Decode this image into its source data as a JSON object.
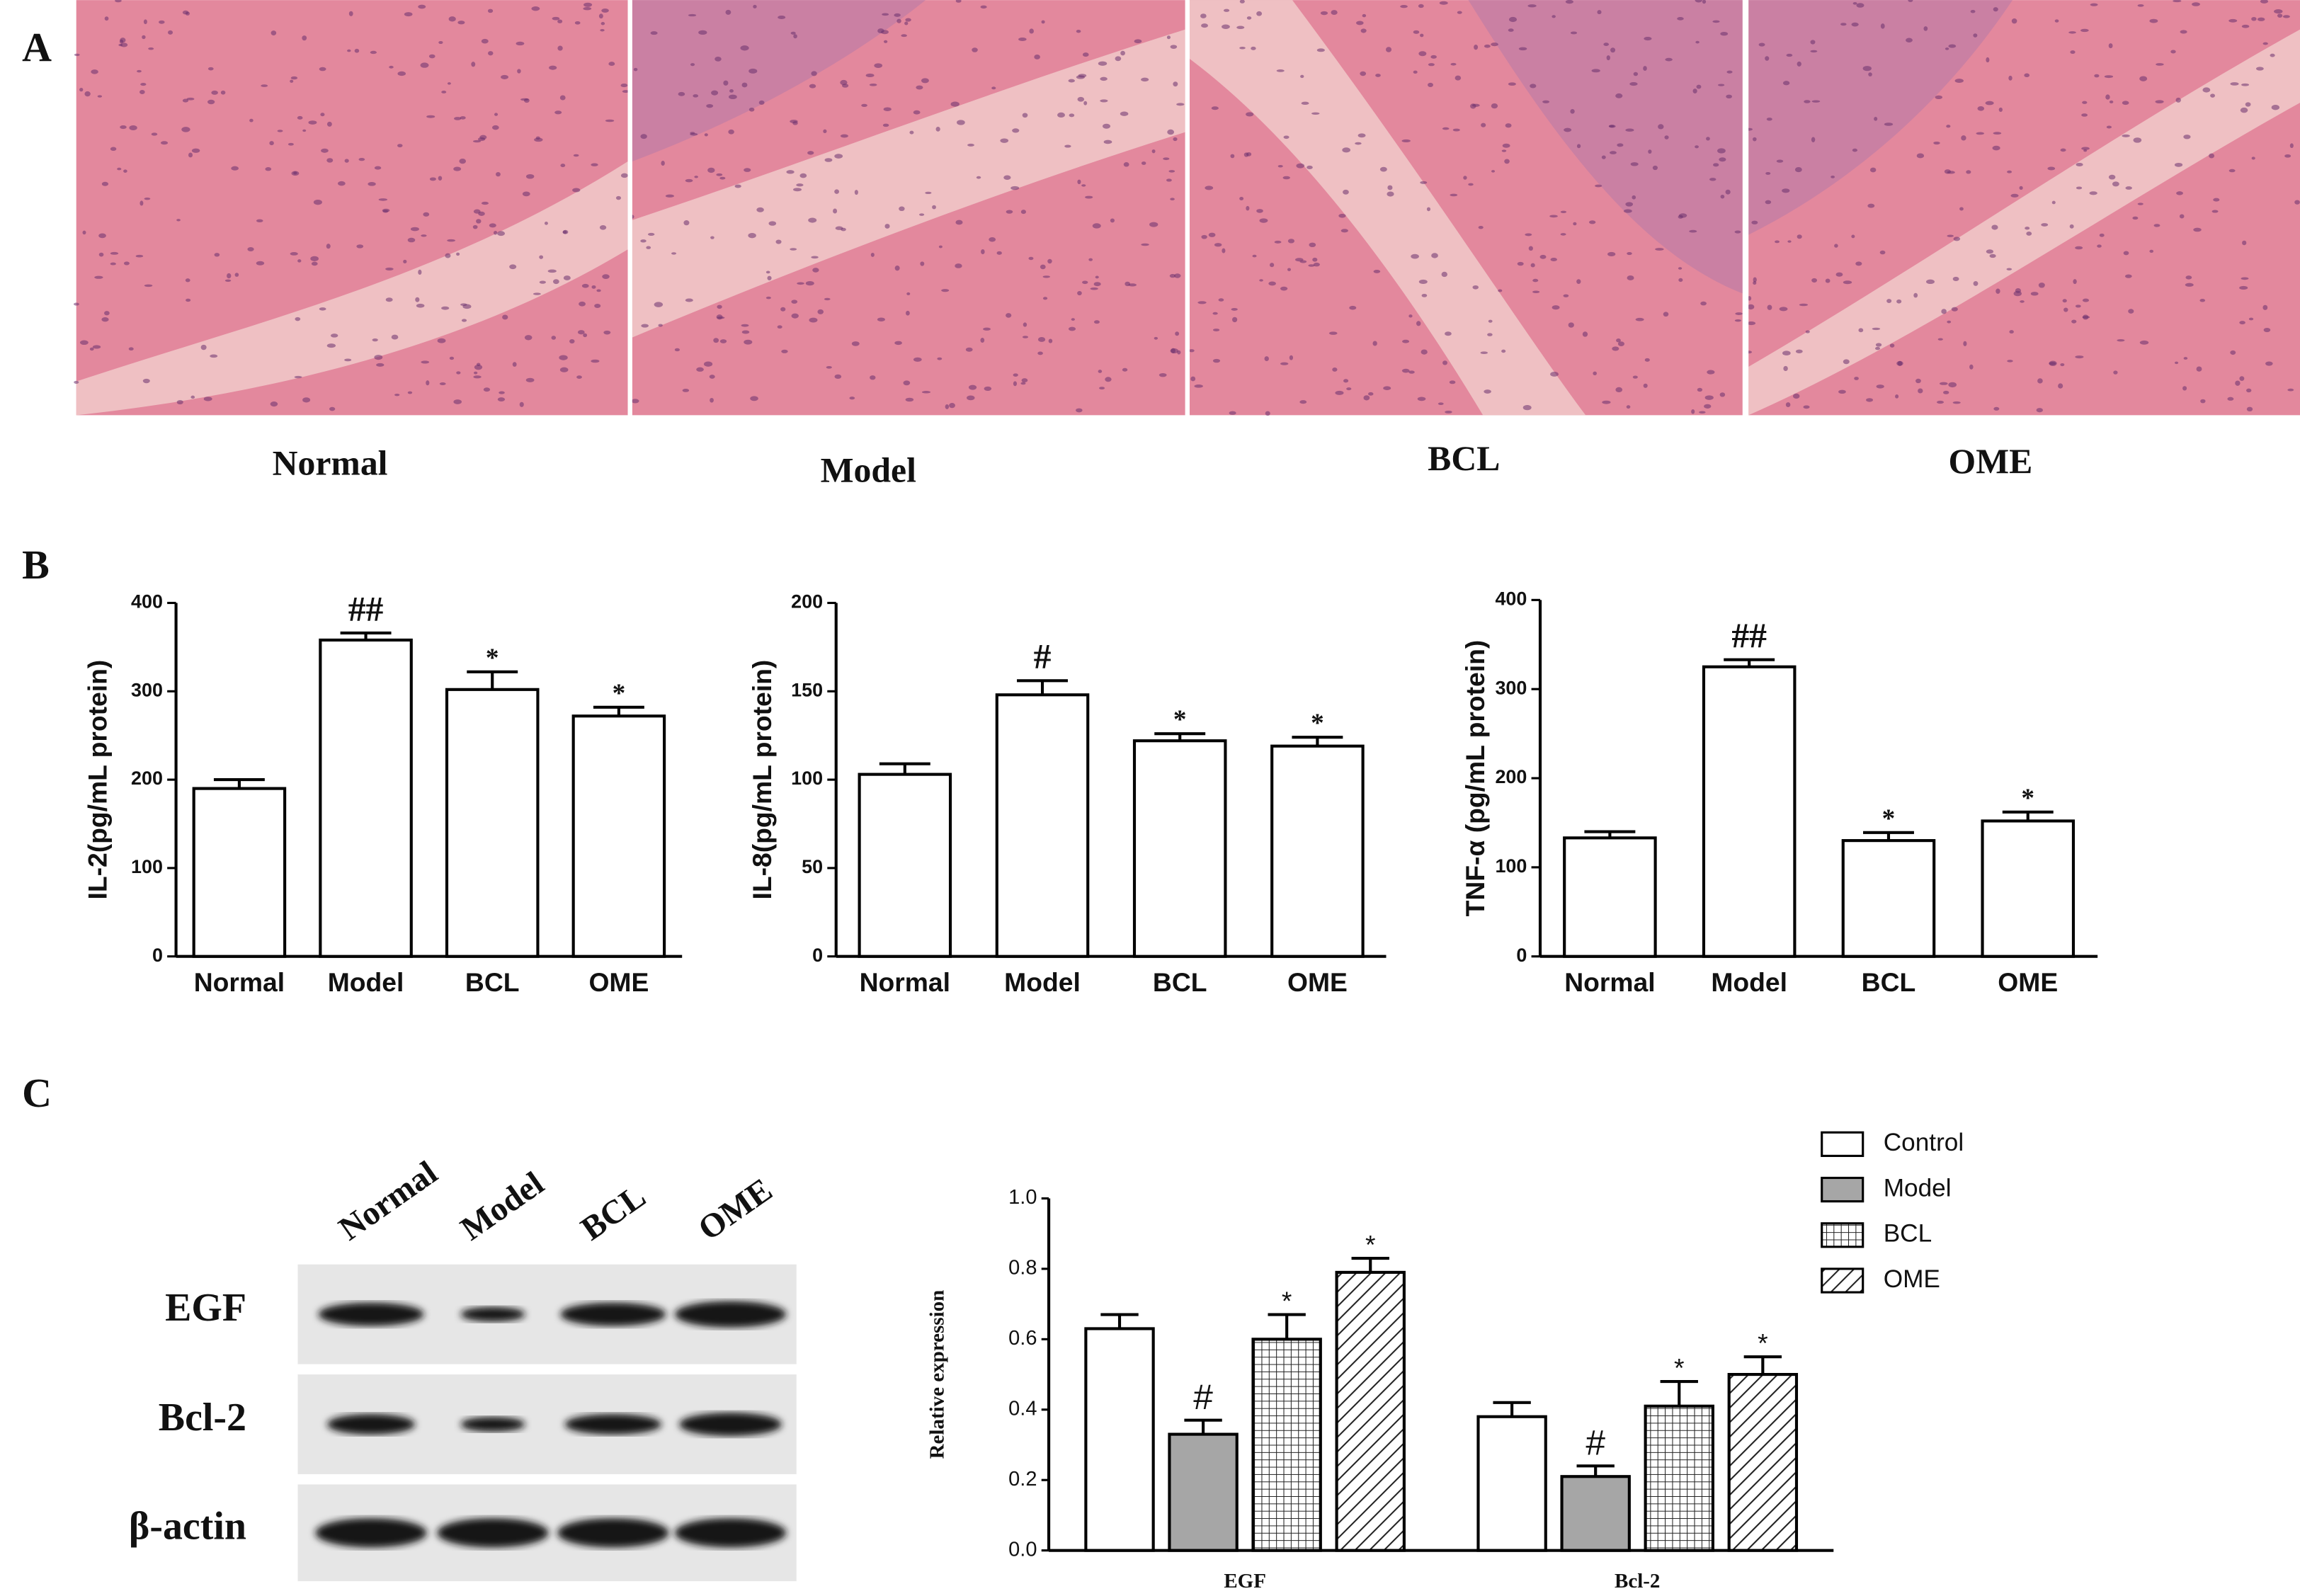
{
  "figure": {
    "panel_labels": [
      "A",
      "B",
      "C"
    ],
    "histology_labels": [
      "Normal",
      "Model",
      "BCL",
      "OME"
    ],
    "blot": {
      "lanes": [
        "Normal",
        "Model",
        "BCL",
        "OME"
      ],
      "rows": [
        "EGF",
        "Bcl-2",
        "β-actin"
      ]
    }
  },
  "chart_data": [
    {
      "type": "bar",
      "ylabel": "IL-2(pg/mL protein)",
      "categories": [
        "Normal",
        "Model",
        "BCL",
        "OME"
      ],
      "values": [
        190,
        358,
        302,
        272
      ],
      "errors": [
        10,
        8,
        20,
        10
      ],
      "annotations": [
        null,
        "##",
        "*",
        "*"
      ],
      "color": "#ffffff",
      "ylim": [
        0,
        400
      ],
      "yticks": [
        0,
        100,
        200,
        300,
        400
      ]
    },
    {
      "type": "bar",
      "ylabel": "IL-8(pg/mL protein)",
      "categories": [
        "Normal",
        "Model",
        "BCL",
        "OME"
      ],
      "values": [
        103,
        148,
        122,
        119
      ],
      "errors": [
        6,
        8,
        4,
        5
      ],
      "annotations": [
        null,
        "#",
        "*",
        "*"
      ],
      "color": "#ffffff",
      "ylim": [
        0,
        200
      ],
      "yticks": [
        0,
        50,
        100,
        150,
        200
      ]
    },
    {
      "type": "bar",
      "ylabel": "TNF-α (pg/mL protein)",
      "categories": [
        "Normal",
        "Model",
        "BCL",
        "OME"
      ],
      "values": [
        133,
        325,
        130,
        152
      ],
      "errors": [
        7,
        8,
        9,
        10
      ],
      "annotations": [
        null,
        "##",
        "*",
        "*"
      ],
      "color": "#ffffff",
      "ylim": [
        0,
        400
      ],
      "yticks": [
        0,
        100,
        200,
        300,
        400
      ]
    },
    {
      "type": "bar",
      "ylabel": "Relative expression",
      "categories": [
        "EGF",
        "Bcl-2"
      ],
      "series": [
        {
          "name": "Control",
          "color": "#ffffff",
          "pattern": "solid",
          "values": [
            0.63,
            0.38
          ],
          "errors": [
            0.04,
            0.04
          ],
          "annotations": [
            null,
            null
          ]
        },
        {
          "name": "Model",
          "color": "#a6a6a6",
          "pattern": "solid",
          "values": [
            0.33,
            0.21
          ],
          "errors": [
            0.04,
            0.03
          ],
          "annotations": [
            "#",
            "#"
          ]
        },
        {
          "name": "BCL",
          "color": "#ffffff",
          "pattern": "grid",
          "values": [
            0.6,
            0.41
          ],
          "errors": [
            0.07,
            0.07
          ],
          "annotations": [
            "*",
            "*"
          ]
        },
        {
          "name": "OME",
          "color": "#ffffff",
          "pattern": "hatch",
          "values": [
            0.79,
            0.5
          ],
          "errors": [
            0.04,
            0.05
          ],
          "annotations": [
            "*",
            "*"
          ]
        }
      ],
      "legend": "top-right",
      "ylim": [
        0,
        1.0
      ],
      "yticks": [
        {
          "value": 0,
          "label": "0.0"
        },
        0.2,
        0.4,
        0.6,
        0.8,
        {
          "value": 1.0,
          "label": "1.0"
        }
      ]
    }
  ]
}
